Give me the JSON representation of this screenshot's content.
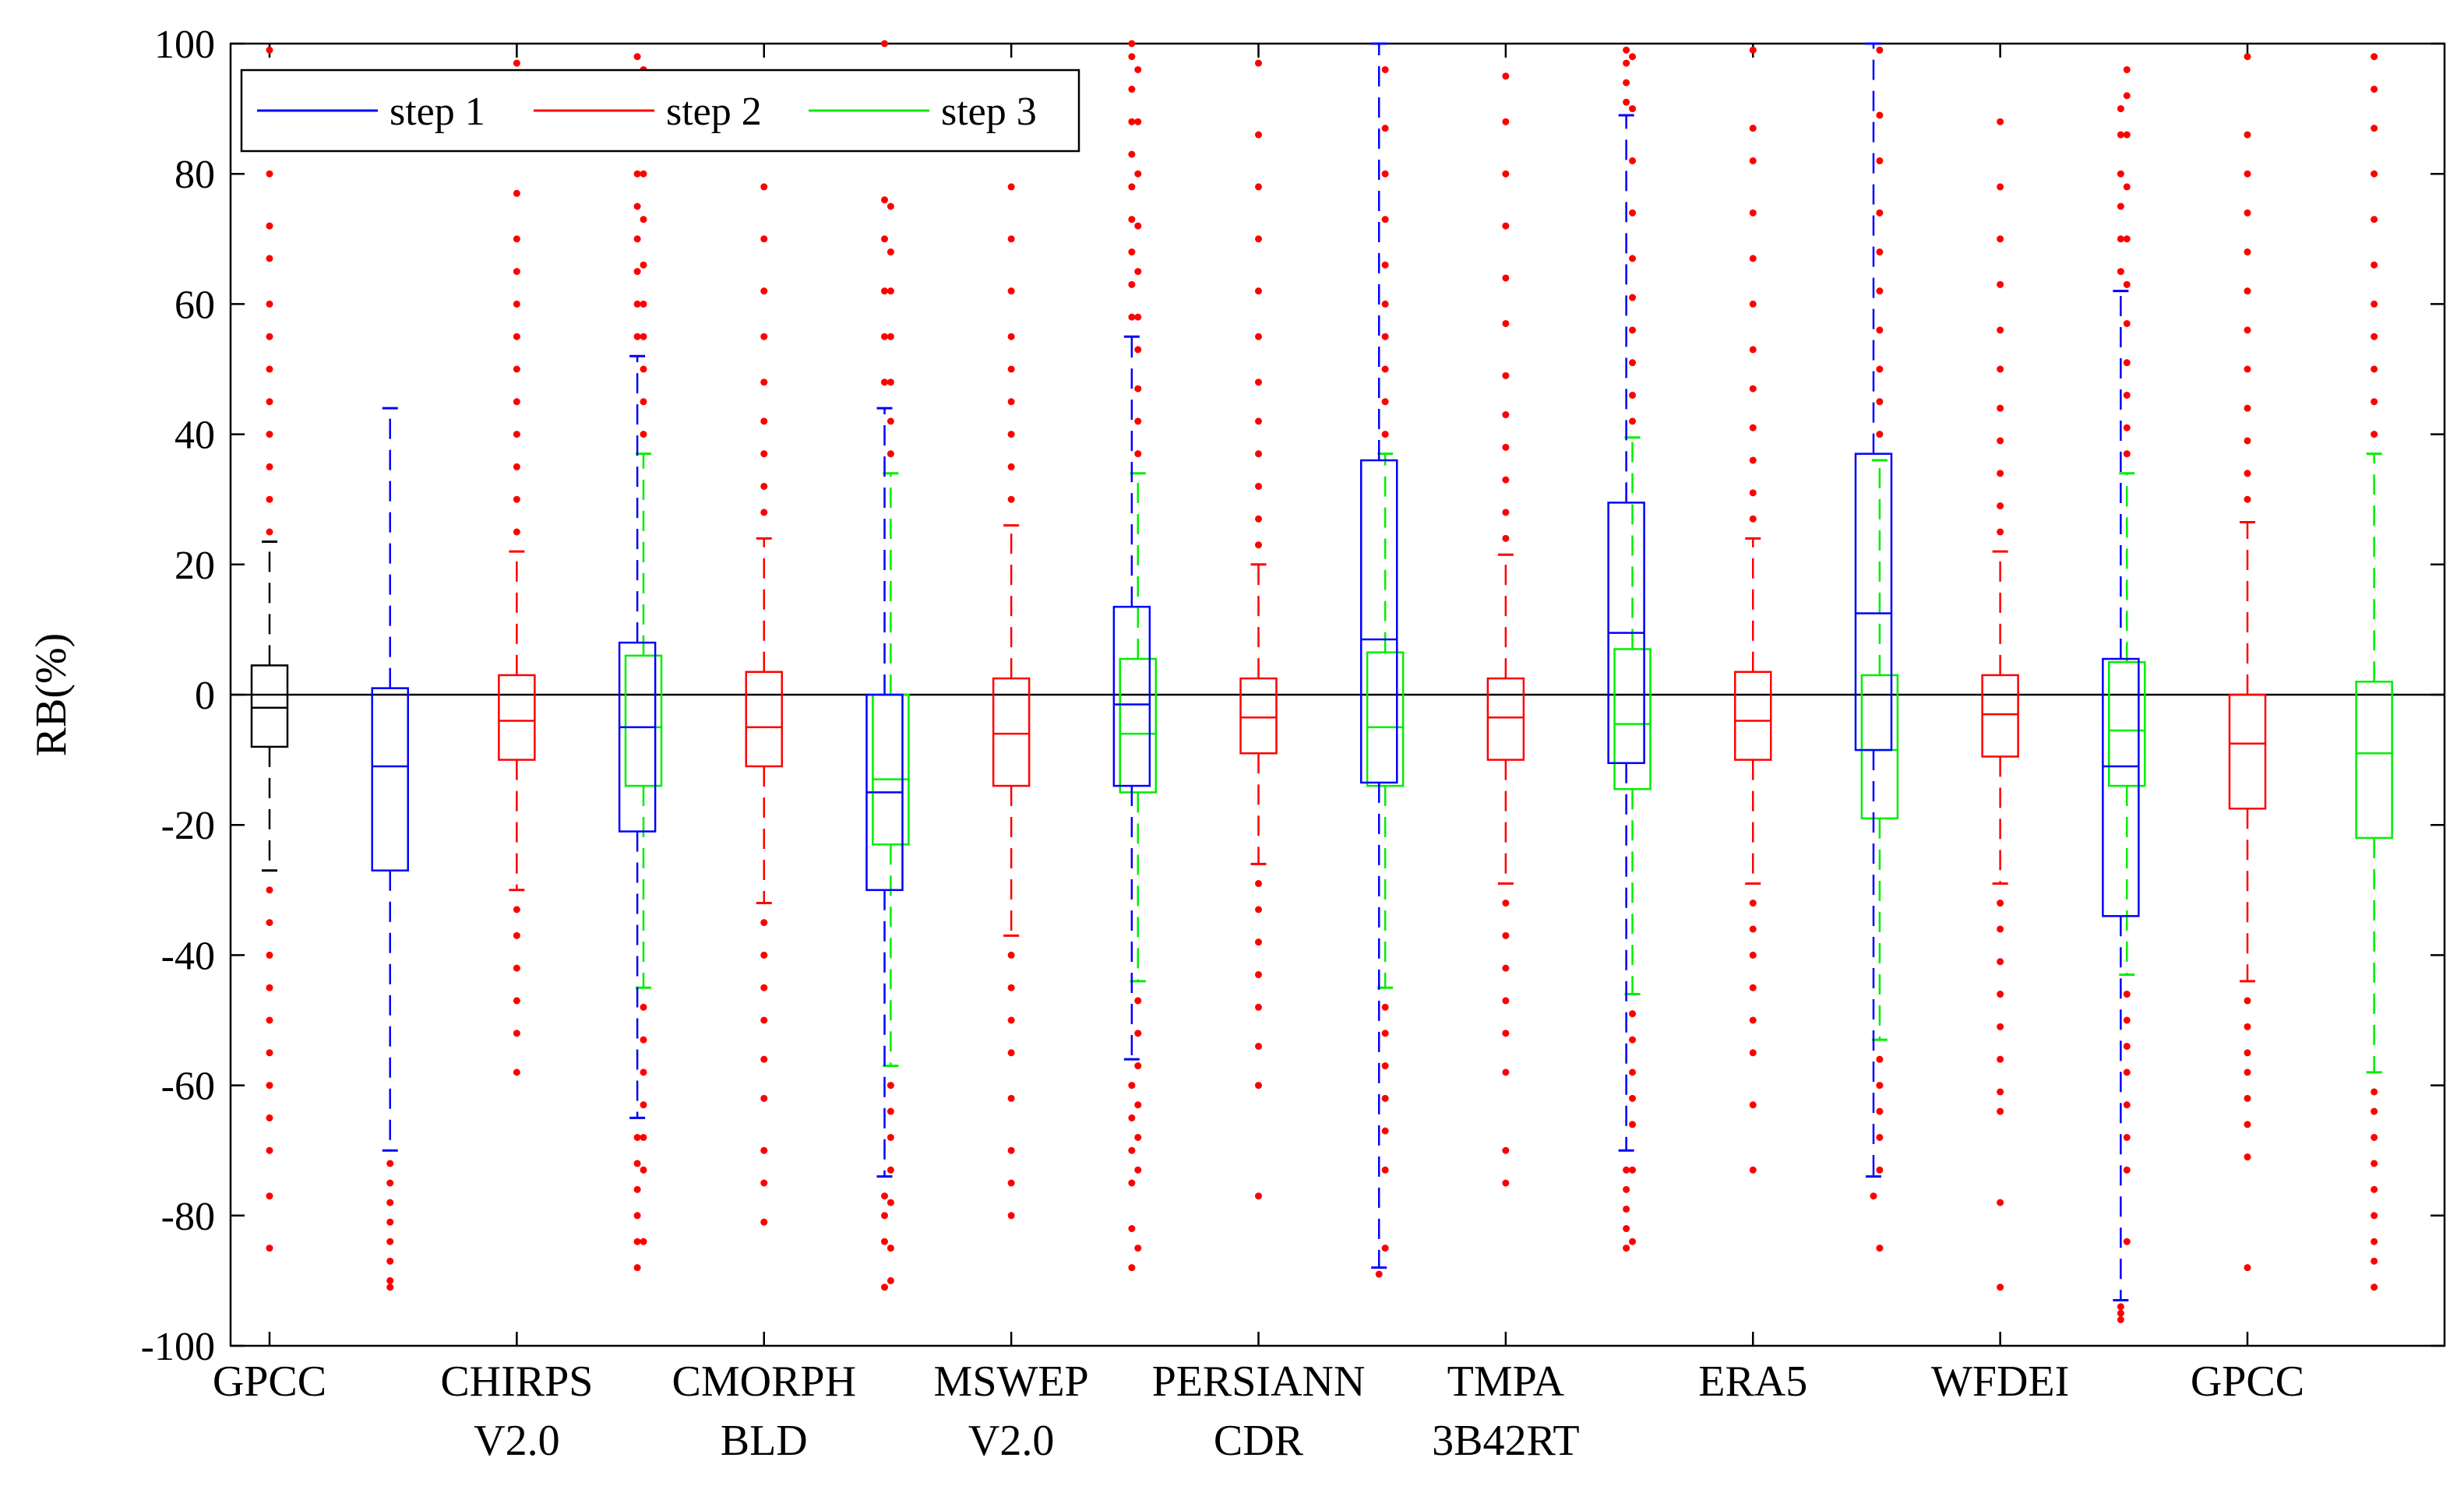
{
  "chart_data": {
    "type": "boxplot",
    "title": "",
    "xlabel": "",
    "ylabel": "RB(%)",
    "ylim": [
      -100,
      100
    ],
    "yticks": [
      "100",
      "80",
      "60",
      "40",
      "20",
      "0",
      "-20",
      "-40",
      "-60",
      "-80",
      "-100"
    ],
    "ytick_values": [
      100,
      80,
      60,
      40,
      20,
      0,
      -20,
      -40,
      -60,
      -80,
      -100
    ],
    "reference_line": 0,
    "legend": {
      "location": "top-left",
      "entries": [
        {
          "name": "step 1",
          "color": "#0000ff"
        },
        {
          "name": "step 2",
          "color": "#ff0000"
        },
        {
          "name": "step 3",
          "color": "#00ee00"
        }
      ]
    },
    "colors": {
      "baseline": "#000000",
      "step1": "#0000ff",
      "step2": "#ff0000",
      "step3": "#00ee00",
      "outlier": "#ff0000"
    },
    "categories": [
      {
        "line1": "GPCC",
        "line2": "",
        "boxes": [
          {
            "series": "baseline",
            "q1": -8,
            "median": -2,
            "q3": 4.5,
            "whisker_low": -27,
            "whisker_high": 23.5,
            "outliers": [
              -30,
              -35,
              -40,
              -45,
              -50,
              -55,
              -60,
              -65,
              -70,
              -77,
              -85,
              25,
              30,
              35,
              40,
              45,
              50,
              55,
              60,
              67,
              72,
              80,
              88,
              95,
              99
            ]
          }
        ]
      },
      {
        "line1": "CHIRPS",
        "line2": "V2.0",
        "boxes": [
          {
            "series": "step1",
            "q1": -27,
            "median": -11,
            "q3": 1,
            "whisker_low": -70,
            "whisker_high": 44,
            "outliers": [
              -72,
              -75,
              -78,
              -81,
              -84,
              -87,
              -90,
              -91
            ]
          },
          {
            "series": "step2",
            "q1": -10,
            "median": -4,
            "q3": 3,
            "whisker_low": -30,
            "whisker_high": 22,
            "outliers": [
              -33,
              -37,
              -42,
              -47,
              -52,
              -58,
              25,
              30,
              35,
              40,
              45,
              50,
              55,
              60,
              65,
              70,
              77,
              85,
              92,
              97
            ]
          },
          {
            "series": "step3",
            "q1": -14,
            "median": -5,
            "q3": 6,
            "whisker_low": -45,
            "whisker_high": 37,
            "outliers": [
              -48,
              -53,
              -58,
              -63,
              -68,
              -73,
              -84,
              40,
              45,
              50,
              55,
              60,
              66,
              73,
              80,
              87,
              92,
              96
            ]
          }
        ]
      },
      {
        "line1": "CMORPH",
        "line2": "BLD",
        "boxes": [
          {
            "series": "step1",
            "q1": -21,
            "median": -5,
            "q3": 8,
            "whisker_low": -65,
            "whisker_high": 52,
            "outliers": [
              -68,
              -72,
              -76,
              -80,
              -84,
              -88,
              55,
              60,
              65,
              70,
              75,
              80,
              88,
              94,
              98
            ]
          },
          {
            "series": "step2",
            "q1": -11,
            "median": -5,
            "q3": 3.5,
            "whisker_low": -32,
            "whisker_high": 24,
            "outliers": [
              -35,
              -40,
              -45,
              -50,
              -56,
              -62,
              -70,
              -75,
              -81,
              28,
              32,
              37,
              42,
              48,
              55,
              62,
              70,
              78,
              86,
              95
            ]
          },
          {
            "series": "step3",
            "q1": -23,
            "median": -13,
            "q3": 0,
            "whisker_low": -57,
            "whisker_high": 34,
            "outliers": [
              -60,
              -64,
              -68,
              -73,
              -78,
              -85,
              -90,
              37,
              42,
              48,
              55,
              62,
              68,
              75
            ]
          }
        ]
      },
      {
        "line1": "MSWEP",
        "line2": "V2.0",
        "boxes": [
          {
            "series": "step1",
            "q1": -30,
            "median": -15,
            "q3": 0,
            "whisker_low": -74,
            "whisker_high": 44,
            "outliers": [
              -77,
              -80,
              -84,
              -91,
              48,
              55,
              62,
              70,
              76,
              95,
              100
            ]
          },
          {
            "series": "step2",
            "q1": -14,
            "median": -6,
            "q3": 2.5,
            "whisker_low": -37,
            "whisker_high": 26,
            "outliers": [
              -40,
              -45,
              -50,
              -55,
              -62,
              -70,
              -75,
              -80,
              30,
              35,
              40,
              45,
              50,
              55,
              62,
              70,
              78
            ]
          },
          {
            "series": "step3",
            "q1": -15,
            "median": -6,
            "q3": 5.5,
            "whisker_low": -44,
            "whisker_high": 34,
            "outliers": [
              -47,
              -52,
              -57,
              -63,
              -68,
              -73,
              -85,
              37,
              42,
              47,
              53,
              58,
              65,
              72,
              80,
              88,
              96
            ]
          }
        ]
      },
      {
        "line1": "PERSIANN",
        "line2": "CDR",
        "boxes": [
          {
            "series": "step1",
            "q1": -14,
            "median": -1.5,
            "q3": 13.5,
            "whisker_low": -56,
            "whisker_high": 55,
            "outliers": [
              -60,
              -65,
              -70,
              -75,
              -82,
              -88,
              58,
              63,
              68,
              73,
              78,
              83,
              88,
              93,
              98,
              100
            ]
          },
          {
            "series": "step2",
            "q1": -9,
            "median": -3.5,
            "q3": 2.5,
            "whisker_low": -26,
            "whisker_high": 20,
            "outliers": [
              -29,
              -33,
              -38,
              -43,
              -48,
              -54,
              -60,
              -77,
              23,
              27,
              32,
              37,
              42,
              48,
              55,
              62,
              70,
              78,
              86,
              97
            ]
          },
          {
            "series": "step3",
            "q1": -14,
            "median": -5,
            "q3": 6.5,
            "whisker_low": -45,
            "whisker_high": 37,
            "outliers": [
              -48,
              -52,
              -57,
              -62,
              -67,
              -73,
              -85,
              40,
              45,
              50,
              55,
              60,
              66,
              73,
              80,
              87,
              96
            ]
          }
        ]
      },
      {
        "line1": "TMPA",
        "line2": "3B42RT",
        "boxes": [
          {
            "series": "step1",
            "q1": -13.5,
            "median": 8.5,
            "q3": 36,
            "whisker_low": -88,
            "whisker_high": 100,
            "outliers": [
              -89
            ]
          },
          {
            "series": "step2",
            "q1": -10,
            "median": -3.5,
            "q3": 2.5,
            "whisker_low": -29,
            "whisker_high": 21.5,
            "outliers": [
              -32,
              -37,
              -42,
              -47,
              -52,
              -58,
              -70,
              -75,
              24,
              28,
              33,
              38,
              43,
              49,
              57,
              64,
              72,
              80,
              88,
              95
            ]
          },
          {
            "series": "step3",
            "q1": -14.5,
            "median": -4.5,
            "q3": 7,
            "whisker_low": -46,
            "whisker_high": 39.5,
            "outliers": [
              -49,
              -53,
              -58,
              -62,
              -66,
              -73,
              -84,
              42,
              46,
              51,
              56,
              61,
              67,
              74,
              82,
              90,
              98
            ]
          }
        ]
      },
      {
        "line1": "ERA5",
        "line2": "",
        "boxes": [
          {
            "series": "step1",
            "q1": -10.5,
            "median": 9.5,
            "q3": 29.5,
            "whisker_low": -70,
            "whisker_high": 89,
            "outliers": [
              -73,
              -76,
              -79,
              -82,
              -85,
              91,
              94,
              97,
              99
            ]
          },
          {
            "series": "step2",
            "q1": -10,
            "median": -4,
            "q3": 3.5,
            "whisker_low": -29,
            "whisker_high": 24,
            "outliers": [
              -32,
              -36,
              -40,
              -45,
              -50,
              -55,
              -63,
              -73,
              27,
              31,
              36,
              41,
              47,
              53,
              60,
              67,
              74,
              82,
              87,
              99
            ]
          },
          {
            "series": "step3",
            "q1": -19,
            "median": -8.5,
            "q3": 3,
            "whisker_low": -53,
            "whisker_high": 36,
            "outliers": [
              -56,
              -60,
              -64,
              -68,
              -73,
              -85,
              40,
              45,
              50,
              56,
              62,
              68,
              74,
              82,
              89,
              99
            ]
          }
        ]
      },
      {
        "line1": "WFDEI",
        "line2": "",
        "boxes": [
          {
            "series": "step1",
            "q1": -8.5,
            "median": 12.5,
            "q3": 37,
            "whisker_low": -74,
            "whisker_high": 100,
            "outliers": [
              -77
            ]
          },
          {
            "series": "step2",
            "q1": -9.5,
            "median": -3,
            "q3": 3,
            "whisker_low": -29,
            "whisker_high": 22,
            "outliers": [
              -32,
              -36,
              -41,
              -46,
              -51,
              -56,
              -61,
              -64,
              -78,
              -91,
              25,
              29,
              34,
              39,
              44,
              50,
              56,
              63,
              70,
              78,
              88
            ]
          },
          {
            "series": "step3",
            "q1": -14,
            "median": -5.5,
            "q3": 5,
            "whisker_low": -43,
            "whisker_high": 34,
            "outliers": [
              -46,
              -50,
              -54,
              -58,
              -63,
              -68,
              -73,
              -84,
              37,
              41,
              46,
              51,
              57,
              63,
              70,
              78,
              86,
              92,
              96
            ]
          }
        ]
      },
      {
        "line1": "GPCC",
        "line2": "",
        "boxes": [
          {
            "series": "step1",
            "q1": -34,
            "median": -11,
            "q3": 5.5,
            "whisker_low": -93,
            "whisker_high": 62,
            "outliers": [
              -94,
              -95,
              -96,
              65,
              70,
              75,
              80,
              86,
              90
            ]
          },
          {
            "series": "step2",
            "q1": -17.5,
            "median": -7.5,
            "q3": 0,
            "whisker_low": -44,
            "whisker_high": 26.5,
            "outliers": [
              -47,
              -51,
              -55,
              -58,
              -62,
              -66,
              -71,
              -88,
              30,
              34,
              39,
              44,
              50,
              56,
              62,
              68,
              74,
              80,
              86,
              98
            ]
          },
          {
            "series": "step3",
            "q1": -22,
            "median": -9,
            "q3": 2,
            "whisker_low": -58,
            "whisker_high": 37,
            "outliers": [
              -61,
              -64,
              -68,
              -72,
              -76,
              -80,
              -84,
              -87,
              -91,
              40,
              45,
              50,
              55,
              60,
              66,
              73,
              80,
              87,
              93,
              98
            ]
          }
        ]
      }
    ]
  }
}
